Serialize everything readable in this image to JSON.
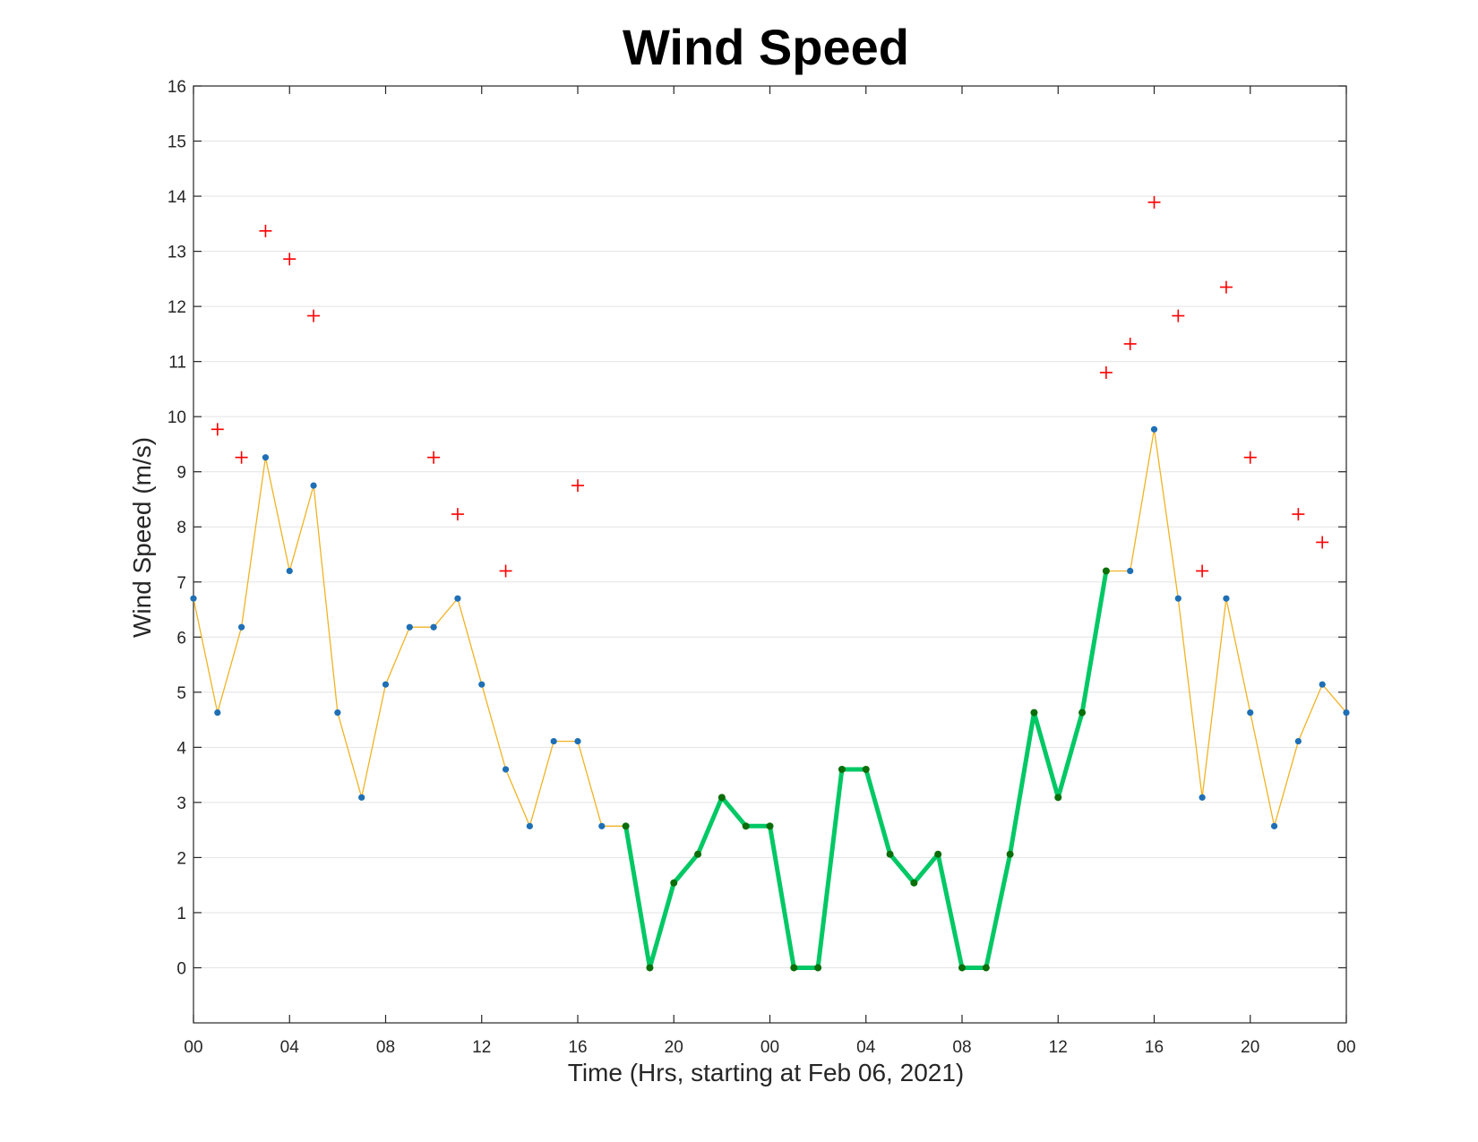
{
  "chart_data": {
    "type": "line",
    "title": "Wind Speed",
    "xlabel": "Time (Hrs, starting at Feb 06, 2021)",
    "ylabel": "Wind Speed (m/s)",
    "xlim": [
      "2021-02-06 00:00",
      "2021-02-08 00:00"
    ],
    "ylim": [
      -1,
      16
    ],
    "grid": "horizontal",
    "x_tick_labels": [
      "00",
      "04",
      "08",
      "12",
      "16",
      "20",
      "00",
      "04",
      "08",
      "12",
      "16",
      "20",
      "00"
    ],
    "x_tick_times": [
      "2021-02-06 00:00",
      "2021-02-06 04:00",
      "2021-02-06 08:00",
      "2021-02-06 12:00",
      "2021-02-06 16:00",
      "2021-02-06 20:00",
      "2021-02-07 00:00",
      "2021-02-07 04:00",
      "2021-02-07 08:00",
      "2021-02-07 12:00",
      "2021-02-07 16:00",
      "2021-02-07 20:00",
      "2021-02-08 00:00"
    ],
    "y_ticks": [
      0,
      1,
      2,
      3,
      4,
      5,
      6,
      7,
      8,
      9,
      10,
      11,
      12,
      13,
      14,
      15,
      16
    ],
    "colors": {
      "speed_line": "#f0b323",
      "speed_marker": "#1f6fb5",
      "low_line": "#00c864",
      "low_marker": "#0a6e0a",
      "gust": "#ff0000"
    },
    "series": [
      {
        "style": "thin-line-with-dots",
        "x": [
          "2021-02-06 00:00",
          "2021-02-06 01:00",
          "2021-02-06 02:00",
          "2021-02-06 03:00",
          "2021-02-06 04:00",
          "2021-02-06 05:00",
          "2021-02-06 06:00",
          "2021-02-06 07:00",
          "2021-02-06 08:00",
          "2021-02-06 09:00",
          "2021-02-06 10:00",
          "2021-02-06 11:00",
          "2021-02-06 12:00",
          "2021-02-06 13:00",
          "2021-02-06 14:00",
          "2021-02-06 15:00",
          "2021-02-06 16:00",
          "2021-02-06 17:00",
          "2021-02-06 18:00",
          "2021-02-06 19:00",
          "2021-02-06 20:00",
          "2021-02-06 21:00",
          "2021-02-06 22:00",
          "2021-02-06 23:00",
          "2021-02-07 00:00",
          "2021-02-07 01:00",
          "2021-02-07 02:00",
          "2021-02-07 03:00",
          "2021-02-07 04:00",
          "2021-02-07 05:00",
          "2021-02-07 06:00",
          "2021-02-07 07:00",
          "2021-02-07 08:00",
          "2021-02-07 09:00",
          "2021-02-07 10:00",
          "2021-02-07 11:00",
          "2021-02-07 12:00",
          "2021-02-07 13:00",
          "2021-02-07 14:00",
          "2021-02-07 15:00",
          "2021-02-07 16:00",
          "2021-02-07 17:00",
          "2021-02-07 18:00",
          "2021-02-07 19:00",
          "2021-02-07 20:00",
          "2021-02-07 21:00",
          "2021-02-07 22:00",
          "2021-02-07 23:00",
          "2021-02-08 00:00"
        ],
        "y": [
          6.7,
          4.63,
          6.18,
          9.26,
          7.2,
          8.75,
          4.63,
          3.09,
          5.14,
          6.18,
          6.18,
          6.7,
          5.14,
          3.6,
          2.57,
          4.11,
          4.11,
          2.57,
          2.57,
          0,
          1.54,
          2.06,
          3.09,
          2.57,
          2.57,
          0,
          0,
          3.6,
          3.6,
          2.06,
          1.54,
          2.06,
          0,
          0,
          2.06,
          4.63,
          3.09,
          4.63,
          7.2,
          7.2,
          9.77,
          6.7,
          3.09,
          6.7,
          4.63,
          2.57,
          4.11,
          5.14,
          4.63
        ]
      },
      {
        "style": "thick-line-with-dots",
        "x": [
          "2021-02-06 18:00",
          "2021-02-06 19:00",
          "2021-02-06 20:00",
          "2021-02-06 21:00",
          "2021-02-06 22:00",
          "2021-02-06 23:00",
          "2021-02-07 00:00",
          "2021-02-07 01:00",
          "2021-02-07 02:00",
          "2021-02-07 03:00",
          "2021-02-07 04:00",
          "2021-02-07 05:00",
          "2021-02-07 06:00",
          "2021-02-07 07:00",
          "2021-02-07 08:00",
          "2021-02-07 09:00",
          "2021-02-07 10:00",
          "2021-02-07 11:00",
          "2021-02-07 12:00",
          "2021-02-07 13:00",
          "2021-02-07 14:00"
        ],
        "y": [
          2.57,
          0,
          1.54,
          2.06,
          3.09,
          2.57,
          2.57,
          0,
          0,
          3.6,
          3.6,
          2.06,
          1.54,
          2.06,
          0,
          0,
          2.06,
          4.63,
          3.09,
          4.63,
          7.2
        ]
      },
      {
        "style": "plus-markers",
        "x": [
          "2021-02-06 01:00",
          "2021-02-06 02:00",
          "2021-02-06 03:00",
          "2021-02-06 04:00",
          "2021-02-06 05:00",
          "2021-02-06 10:00",
          "2021-02-06 11:00",
          "2021-02-06 13:00",
          "2021-02-06 16:00",
          "2021-02-07 14:00",
          "2021-02-07 15:00",
          "2021-02-07 16:00",
          "2021-02-07 17:00",
          "2021-02-07 18:00",
          "2021-02-07 19:00",
          "2021-02-07 20:00",
          "2021-02-07 22:00",
          "2021-02-07 23:00"
        ],
        "y": [
          9.77,
          9.26,
          13.37,
          12.86,
          11.83,
          9.26,
          8.23,
          7.2,
          8.75,
          10.8,
          11.32,
          13.89,
          11.83,
          7.2,
          12.35,
          9.26,
          8.23,
          7.72
        ]
      }
    ]
  }
}
